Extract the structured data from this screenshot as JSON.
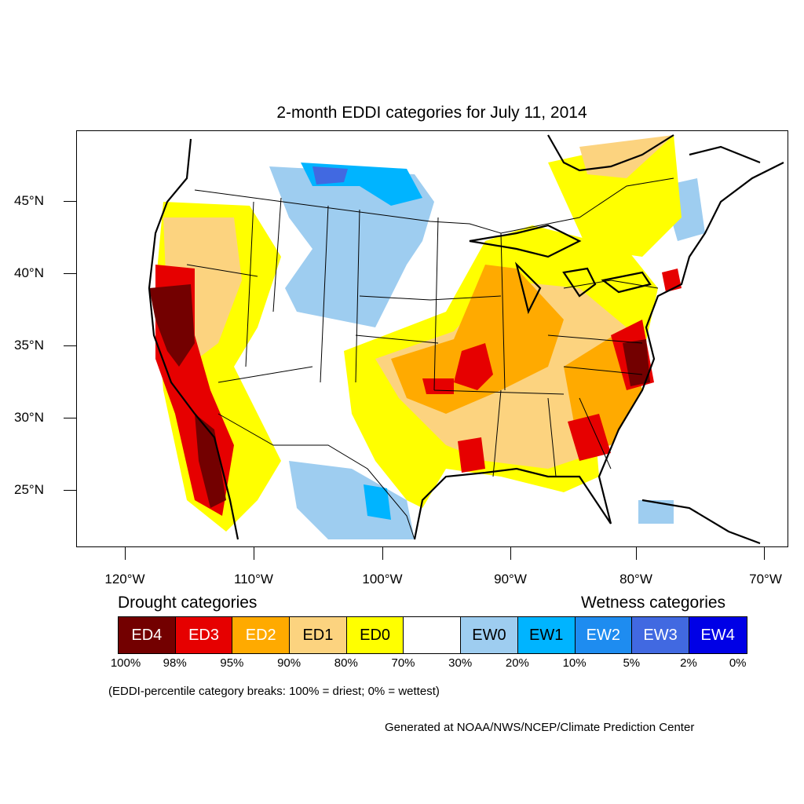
{
  "title": "2-month EDDI categories for July 11, 2014",
  "latitude_labels": [
    "45°N",
    "40°N",
    "35°N",
    "30°N",
    "25°N"
  ],
  "longitude_labels": [
    "120°W",
    "110°W",
    "100°W",
    "90°W",
    "80°W",
    "70°W"
  ],
  "legend": {
    "drought_heading": "Drought categories",
    "wetness_heading": "Wetness categories",
    "categories": [
      {
        "label": "ED4",
        "color": "#730000",
        "text_color": "#ffffff"
      },
      {
        "label": "ED3",
        "color": "#e60000",
        "text_color": "#ffffff"
      },
      {
        "label": "ED2",
        "color": "#ffaa00",
        "text_color": "#ffffff"
      },
      {
        "label": "ED1",
        "color": "#fcd37f",
        "text_color": "#000000"
      },
      {
        "label": "ED0",
        "color": "#ffff00",
        "text_color": "#000000"
      },
      {
        "label": "",
        "color": "#ffffff",
        "text_color": "#000000"
      },
      {
        "label": "EW0",
        "color": "#9ecdf0",
        "text_color": "#000000"
      },
      {
        "label": "EW1",
        "color": "#00b4ff",
        "text_color": "#000000"
      },
      {
        "label": "EW2",
        "color": "#1e8cf0",
        "text_color": "#ffffff"
      },
      {
        "label": "EW3",
        "color": "#4169e1",
        "text_color": "#ffffff"
      },
      {
        "label": "EW4",
        "color": "#0000e6",
        "text_color": "#ffffff"
      }
    ],
    "percentiles": [
      "100%",
      "98%",
      "95%",
      "90%",
      "80%",
      "70%",
      "30%",
      "20%",
      "10%",
      "5%",
      "2%",
      "0%"
    ]
  },
  "note": "(EDDI-percentile category breaks: 100% = driest; 0% = wettest)",
  "credit": "Generated at NOAA/NWS/NCEP/Climate Prediction Center"
}
